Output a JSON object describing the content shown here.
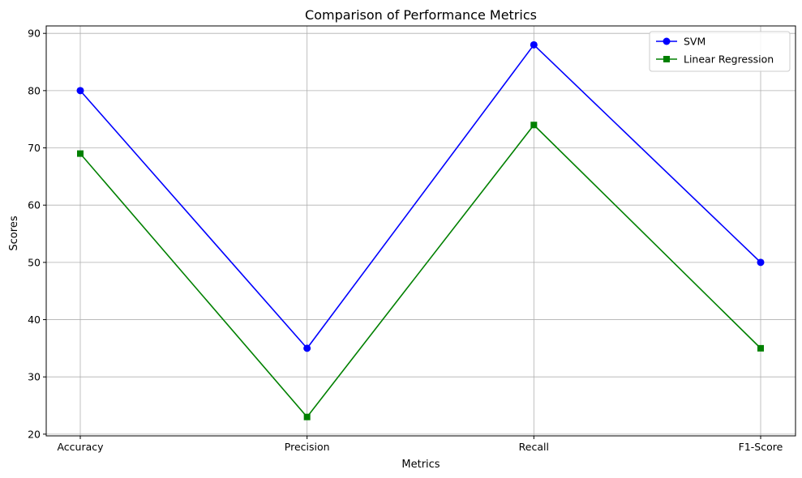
{
  "chart_data": {
    "type": "line",
    "title": "Comparison of Performance Metrics",
    "xlabel": "Metrics",
    "ylabel": "Scores",
    "categories": [
      "Accuracy",
      "Precision",
      "Recall",
      "F1-Score"
    ],
    "ylim": [
      19.7,
      91.3
    ],
    "yticks": [
      20,
      30,
      40,
      50,
      60,
      70,
      80,
      90
    ],
    "grid": true,
    "legend_position": "top-right",
    "series": [
      {
        "name": "SVM",
        "values": [
          80,
          35,
          88,
          50
        ],
        "color": "#0000ff",
        "marker": "circle"
      },
      {
        "name": "Linear Regression",
        "values": [
          69,
          23,
          74,
          35
        ],
        "color": "#008000",
        "marker": "square"
      }
    ]
  }
}
